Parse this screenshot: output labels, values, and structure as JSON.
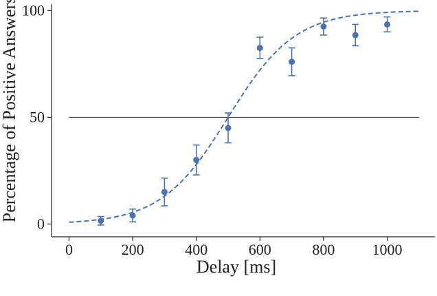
{
  "chart_data": {
    "type": "scatter",
    "title": "",
    "xlabel": "Delay [ms]",
    "ylabel": "Percentage of Positive Answers",
    "xlim": [
      -55,
      1150
    ],
    "ylim": [
      -6,
      103
    ],
    "x_ticks": [
      0,
      200,
      400,
      600,
      800,
      1000
    ],
    "x_tick_labels": [
      "0",
      "200",
      "400",
      "600",
      "800",
      "1000"
    ],
    "y_ticks": [
      0,
      50,
      100
    ],
    "y_tick_labels": [
      "0",
      "50",
      "100"
    ],
    "grid": false,
    "legend": "none",
    "series": [
      {
        "kind": "points_with_error_bars",
        "color": "#4c72b0",
        "x": [
          100,
          200,
          300,
          400,
          500,
          600,
          700,
          800,
          900,
          1000
        ],
        "y": [
          1.5,
          4,
          15,
          30,
          45,
          82.5,
          76,
          92.5,
          88.5,
          93.5
        ],
        "err": [
          2.0,
          3.0,
          6.5,
          7.0,
          7.0,
          5.0,
          6.5,
          4.0,
          5.0,
          3.5
        ]
      },
      {
        "kind": "fitted_curve",
        "style": "dashed",
        "color": "#4c72b0",
        "model": "logistic",
        "x0": 500,
        "slope": 0.0095,
        "x_range": [
          0,
          1100
        ]
      },
      {
        "kind": "reference_line",
        "color": "#222222",
        "y": 50,
        "x_range": [
          0,
          1100
        ]
      }
    ]
  }
}
